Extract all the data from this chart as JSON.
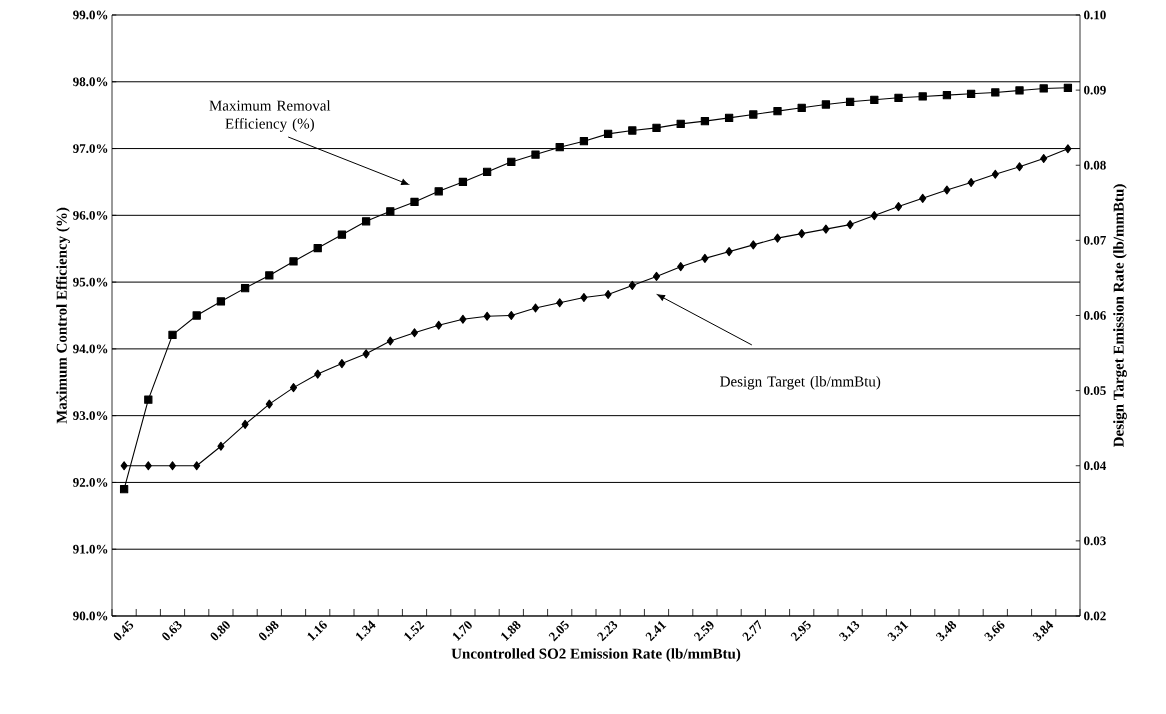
{
  "chart_data": {
    "type": "line",
    "xlabel": "Uncontrolled SO2 Emission Rate (lb/mmBtu)",
    "ylabel": "Maximum Control Efficiency (%)",
    "y2label": "Design Target Emission Rate (lb/mmBtu)",
    "categories": [
      "0.45",
      null,
      "0.63",
      null,
      "0.80",
      null,
      "0.98",
      null,
      "1.16",
      null,
      "1.34",
      null,
      "1.52",
      null,
      "1.70",
      null,
      "1.88",
      null,
      "2.05",
      null,
      "2.23",
      null,
      "2.41",
      null,
      "2.59",
      null,
      "2.77",
      null,
      "2.95",
      null,
      "3.13",
      null,
      "3.31",
      null,
      "3.48",
      null,
      "3.66",
      null,
      "3.84",
      null
    ],
    "series": [
      {
        "color": "#000000",
        "marker": "square",
        "axis": "y",
        "values": [
          91.9,
          93.24,
          94.21,
          94.5,
          94.71,
          94.91,
          95.1,
          95.31,
          95.51,
          95.71,
          95.91,
          96.06,
          96.2,
          96.36,
          96.5,
          96.65,
          96.8,
          96.91,
          97.02,
          97.11,
          97.22,
          97.27,
          97.31,
          97.37,
          97.41,
          97.46,
          97.51,
          97.56,
          97.61,
          97.66,
          97.7,
          97.73,
          97.76,
          97.78,
          97.8,
          97.82,
          97.84,
          97.87,
          97.9,
          97.91
        ]
      },
      {
        "color": "#000000",
        "marker": "diamond",
        "axis": "y2",
        "values": [
          0.04,
          0.04,
          0.04,
          0.04,
          0.0426,
          0.0455,
          0.0482,
          0.0504,
          0.0522,
          0.0536,
          0.0549,
          0.0566,
          0.0577,
          0.0587,
          0.0595,
          0.0599,
          0.06,
          0.061,
          0.0617,
          0.0624,
          0.0628,
          0.064,
          0.0652,
          0.0665,
          0.0676,
          0.0685,
          0.0694,
          0.0703,
          0.0709,
          0.0715,
          0.0721,
          0.0733,
          0.0745,
          0.0756,
          0.0767,
          0.0777,
          0.0788,
          0.0798,
          0.0809,
          0.0822
        ]
      }
    ],
    "ylim": [
      90,
      99
    ],
    "yticks": [
      {
        "value": 90,
        "label": "90.0%"
      },
      {
        "value": 91,
        "label": "91.0%"
      },
      {
        "value": 92,
        "label": "92.0%"
      },
      {
        "value": 93,
        "label": "93.0%"
      },
      {
        "value": 94,
        "label": "94.0%"
      },
      {
        "value": 95,
        "label": "95.0%"
      },
      {
        "value": 96,
        "label": "96.0%"
      },
      {
        "value": 97,
        "label": "97.0%"
      },
      {
        "value": 98,
        "label": "98.0%"
      },
      {
        "value": 99,
        "label": "99.0%"
      }
    ],
    "y2lim": [
      0.02,
      0.1
    ],
    "y2ticks": [
      0.02,
      0.03,
      0.04,
      0.05,
      0.06,
      0.07,
      0.08,
      0.09,
      {
        "value": 0.1,
        "label": "0.10"
      }
    ],
    "grid": "y",
    "line_style": "solid",
    "annotations": [
      "Maximum Removal Efficiency (%)",
      "Design Target  (lb/mmBtu)"
    ]
  }
}
